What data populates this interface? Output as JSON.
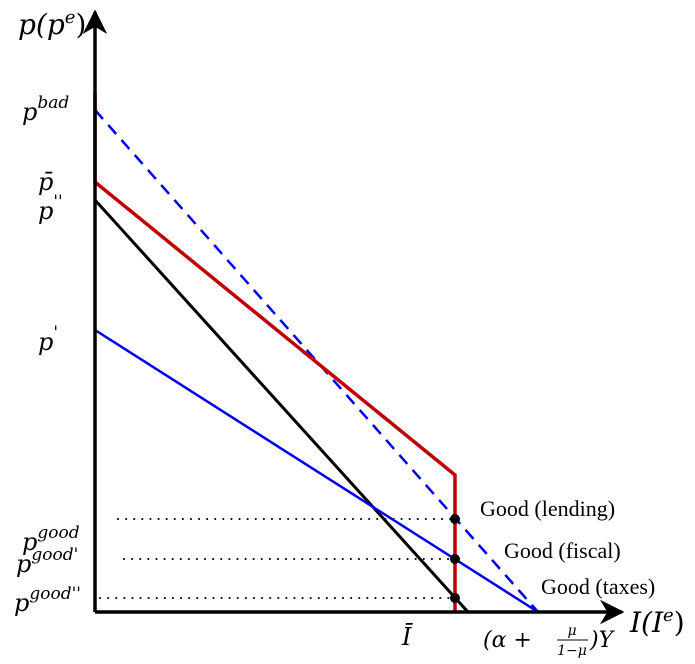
{
  "axes": {
    "y_label": {
      "base": "p(p",
      "sup": "e",
      "close": ")"
    },
    "x_label": {
      "base": "I(I",
      "sup": "e",
      "close": ")"
    }
  },
  "y_ticks": {
    "p_bad": {
      "base": "p",
      "sup": "bad"
    },
    "p_bar": {
      "base": "p̄"
    },
    "p_double_prime": {
      "base": "p",
      "sup": "''"
    },
    "p_prime": {
      "base": "p",
      "sup": "'"
    },
    "p_good": {
      "base": "p",
      "sup": "good"
    },
    "p_good_prime": {
      "base": "p",
      "sup": "good'"
    },
    "p_good_double_prime": {
      "base": "p",
      "sup": "good''"
    }
  },
  "x_ticks": {
    "i_bar": "Ī",
    "limit": {
      "open": "(α + ",
      "num": "μ",
      "den": "1−μ",
      "close": ")Y"
    }
  },
  "annotations": {
    "good_lending": "Good (lending)",
    "good_fiscal": "Good (fiscal)",
    "good_taxes": "Good (taxes)"
  },
  "colors": {
    "axis": "#000000",
    "red_curve": "#c00000",
    "blue_curve": "#0000ee",
    "black_curve": "#000000",
    "dotted": "#000000"
  }
}
